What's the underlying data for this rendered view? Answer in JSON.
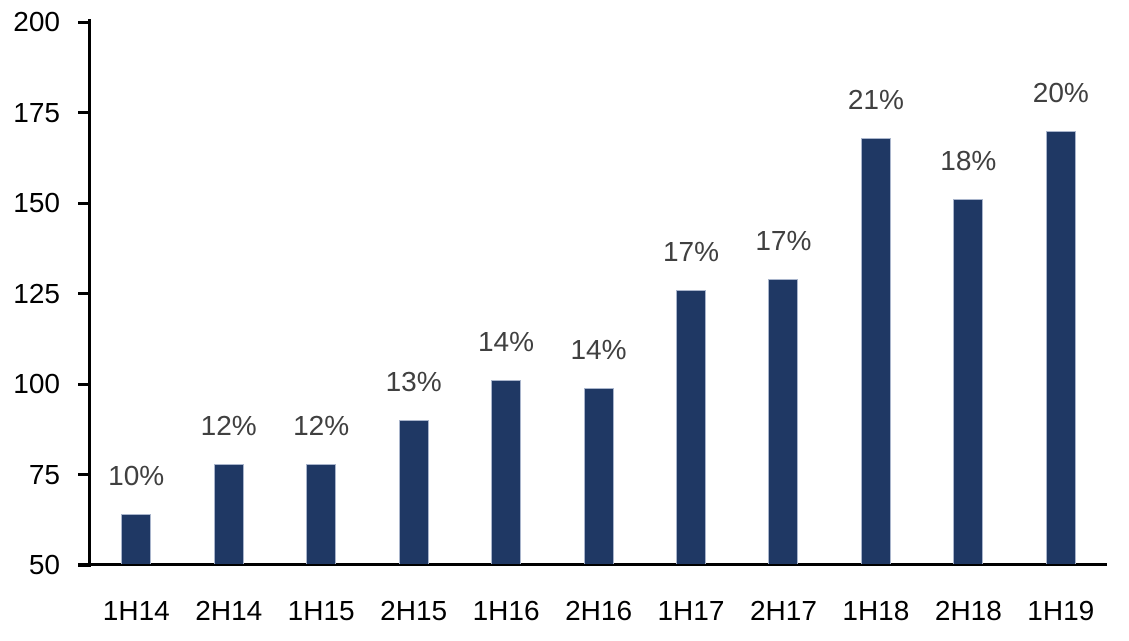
{
  "chart_data": {
    "type": "bar",
    "title": "",
    "xlabel": "",
    "ylabel": "",
    "categories": [
      "1H14",
      "2H14",
      "1H15",
      "2H15",
      "1H16",
      "2H16",
      "1H17",
      "2H17",
      "1H18",
      "2H18",
      "1H19"
    ],
    "values": [
      64,
      78,
      78,
      90,
      101,
      99,
      126,
      129,
      168,
      151,
      170
    ],
    "bar_labels": [
      "10%",
      "12%",
      "12%",
      "13%",
      "14%",
      "14%",
      "17%",
      "17%",
      "21%",
      "18%",
      "20%"
    ],
    "ylim": [
      50,
      200
    ],
    "yticks": [
      50,
      75,
      100,
      125,
      150,
      175,
      200
    ],
    "grid": false,
    "legend": "none",
    "colors": {
      "bar_fill": "#1F3864",
      "bar_border": "#A9B5CC",
      "data_label": "#404040",
      "axis_line": "#000000",
      "tick_label": "#000000",
      "background": "#FFFFFF"
    }
  }
}
